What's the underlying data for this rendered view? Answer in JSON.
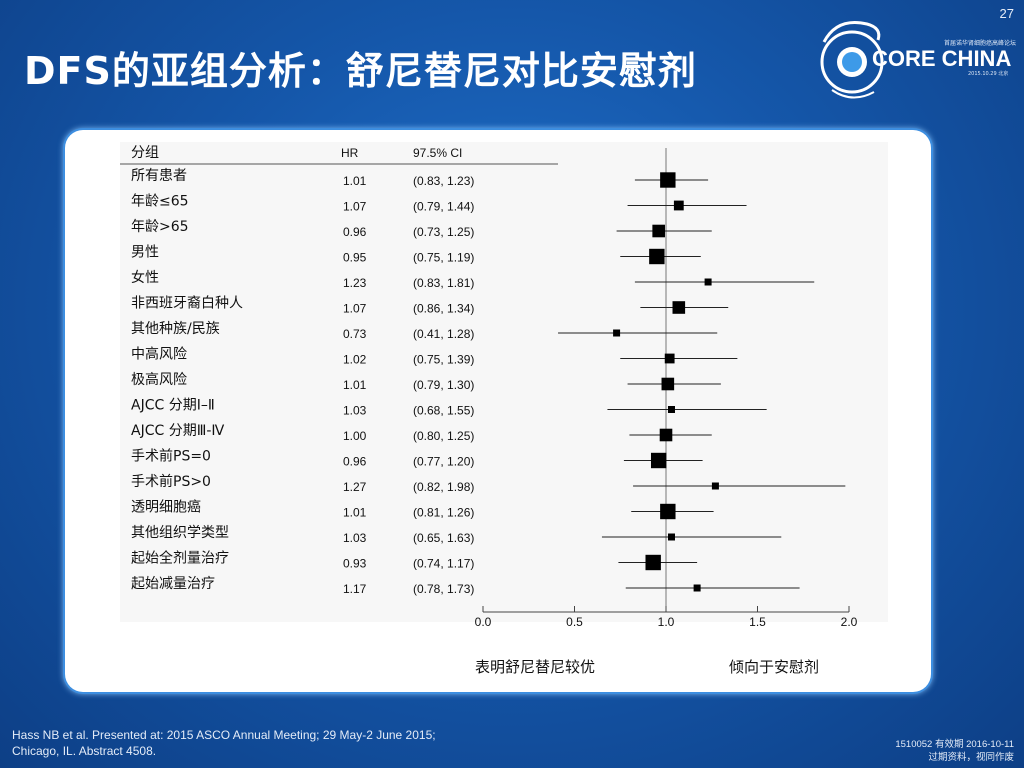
{
  "slide": {
    "page_number": "27",
    "title": "DFS的亚组分析：舒尼替尼对比安慰剂",
    "logo_text": "CORE CHINA",
    "logo_sub": "首届诺华肾细胞癌高峰论坛",
    "logo_date": "2015.10.29 北京",
    "footer_citation": [
      "Hass NB et al. Presented at: 2015 ASCO Annual Meeting; 29 May-2 June 2015;",
      "Chicago, IL. Abstract 4508."
    ],
    "footer_code": [
      "1510052  有效期 2016-10-11",
      "过期资料，视同作废"
    ]
  },
  "colors": {
    "background": "#1557aa",
    "panel": "#ffffff",
    "panel_border": "#3d8ee0",
    "marker": "#000000"
  },
  "chart_data": {
    "type": "forest",
    "columns": {
      "group": "分组",
      "hr": "HR",
      "ci": "97.5% CI"
    },
    "rows": [
      {
        "group": "所有患者",
        "hr": 1.01,
        "hr_label": "1.01",
        "ci_low": 0.83,
        "ci_high": 1.23,
        "ci_label": "(0.83, 1.23)"
      },
      {
        "group": "年龄≤65",
        "hr": 1.07,
        "hr_label": "1.07",
        "ci_low": 0.79,
        "ci_high": 1.44,
        "ci_label": "(0.79, 1.44)"
      },
      {
        "group": "年龄>65",
        "hr": 0.96,
        "hr_label": "0.96",
        "ci_low": 0.73,
        "ci_high": 1.25,
        "ci_label": "(0.73, 1.25)"
      },
      {
        "group": "男性",
        "hr": 0.95,
        "hr_label": "0.95",
        "ci_low": 0.75,
        "ci_high": 1.19,
        "ci_label": "(0.75, 1.19)"
      },
      {
        "group": "女性",
        "hr": 1.23,
        "hr_label": "1.23",
        "ci_low": 0.83,
        "ci_high": 1.81,
        "ci_label": "(0.83, 1.81)"
      },
      {
        "group": "非西班牙裔白种人",
        "hr": 1.07,
        "hr_label": "1.07",
        "ci_low": 0.86,
        "ci_high": 1.34,
        "ci_label": "(0.86, 1.34)"
      },
      {
        "group": "其他种族/民族",
        "hr": 0.73,
        "hr_label": "0.73",
        "ci_low": 0.41,
        "ci_high": 1.28,
        "ci_label": "(0.41, 1.28)"
      },
      {
        "group": "中高风险",
        "hr": 1.02,
        "hr_label": "1.02",
        "ci_low": 0.75,
        "ci_high": 1.39,
        "ci_label": "(0.75, 1.39)"
      },
      {
        "group": "极高风险",
        "hr": 1.01,
        "hr_label": "1.01",
        "ci_low": 0.79,
        "ci_high": 1.3,
        "ci_label": "(0.79, 1.30)"
      },
      {
        "group": "AJCC 分期Ⅰ–Ⅱ",
        "hr": 1.03,
        "hr_label": "1.03",
        "ci_low": 0.68,
        "ci_high": 1.55,
        "ci_label": "(0.68, 1.55)"
      },
      {
        "group": "AJCC 分期Ⅲ-Ⅳ",
        "hr": 1.0,
        "hr_label": "1.00",
        "ci_low": 0.8,
        "ci_high": 1.25,
        "ci_label": "(0.80, 1.25)"
      },
      {
        "group": "手术前PS=0",
        "hr": 0.96,
        "hr_label": "0.96",
        "ci_low": 0.77,
        "ci_high": 1.2,
        "ci_label": "(0.77, 1.20)"
      },
      {
        "group": "手术前PS>0",
        "hr": 1.27,
        "hr_label": "1.27",
        "ci_low": 0.82,
        "ci_high": 1.98,
        "ci_label": "(0.82, 1.98)"
      },
      {
        "group": "透明细胞癌",
        "hr": 1.01,
        "hr_label": "1.01",
        "ci_low": 0.81,
        "ci_high": 1.26,
        "ci_label": "(0.81, 1.26)"
      },
      {
        "group": "其他组织学类型",
        "hr": 1.03,
        "hr_label": "1.03",
        "ci_low": 0.65,
        "ci_high": 1.63,
        "ci_label": "(0.65, 1.63)"
      },
      {
        "group": "起始全剂量治疗",
        "hr": 0.93,
        "hr_label": "0.93",
        "ci_low": 0.74,
        "ci_high": 1.17,
        "ci_label": "(0.74, 1.17)"
      },
      {
        "group": "起始减量治疗",
        "hr": 1.17,
        "hr_label": "1.17",
        "ci_low": 0.78,
        "ci_high": 1.73,
        "ci_label": "(0.78, 1.73)"
      }
    ],
    "marker_size": [
      3,
      1,
      2,
      3,
      0,
      2,
      0,
      1,
      2,
      0,
      2,
      3,
      0,
      3,
      0,
      3,
      0
    ],
    "reference_line": 1.0,
    "xlim": [
      0.0,
      2.0
    ],
    "xticks": [
      "0.0",
      "0.5",
      "1.0",
      "1.5",
      "2.0"
    ],
    "xtick_values": [
      0.0,
      0.5,
      1.0,
      1.5,
      2.0
    ],
    "favors_left": "表明舒尼替尼较优",
    "favors_right": "倾向于安慰剂"
  }
}
